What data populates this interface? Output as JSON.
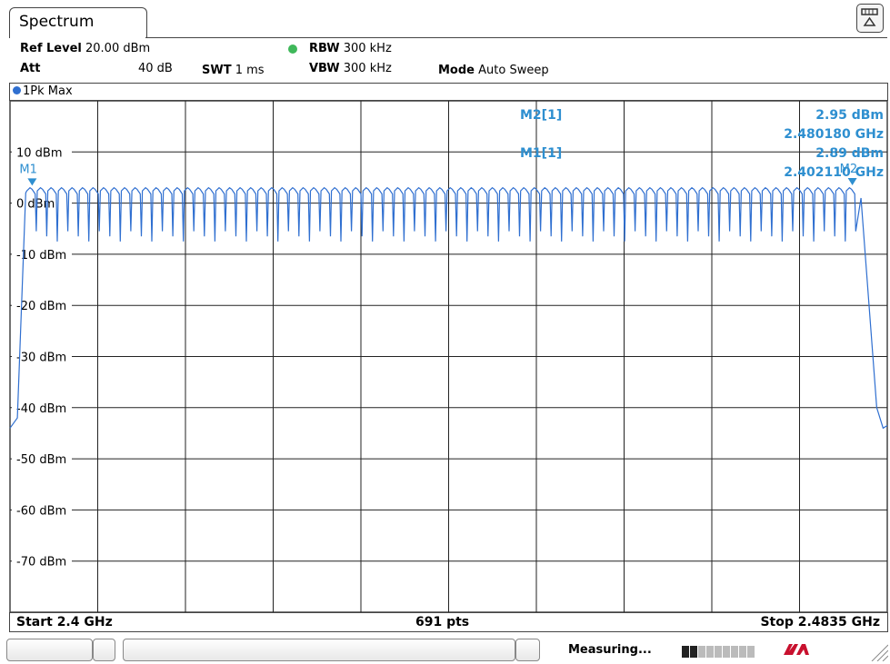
{
  "window": {
    "tab_title": "Spectrum"
  },
  "settings": {
    "ref_level_label": "Ref Level",
    "ref_level_value": "20.00 dBm",
    "att_label": "Att",
    "att_value": "40 dB",
    "swt_label": "SWT",
    "swt_value": "1 ms",
    "rbw_label": "RBW",
    "rbw_value": "300 kHz",
    "vbw_label": "VBW",
    "vbw_value": "300 kHz",
    "mode_label": "Mode",
    "mode_value": "Auto Sweep"
  },
  "trace": {
    "label": "1Pk Max",
    "color": "#2f6fd0"
  },
  "chart_data": {
    "type": "line",
    "x_start_ghz": 2.4,
    "x_stop_ghz": 2.4835,
    "ylim": [
      -80,
      20
    ],
    "grid": true,
    "ytick_labels": [
      "10 dBm",
      "0 dBm",
      "-10 dBm",
      "-20 dBm",
      "-30 dBm",
      "-40 dBm",
      "-50 dBm",
      "-60 dBm",
      "-70 dBm"
    ],
    "ytick_values": [
      10,
      0,
      -10,
      -20,
      -30,
      -40,
      -50,
      -60,
      -70
    ],
    "series": [
      {
        "channels": 79,
        "channel_start_ghz": 2.402,
        "channel_spacing_mhz": 1,
        "peak_dbm": 3.0,
        "dip_dbm": -5.5,
        "floor_dbm": -44
      }
    ],
    "markers": [
      {
        "id": "M1",
        "label": "M1[1]",
        "freq_ghz": 2.40211,
        "level_dbm": 2.89,
        "level_text": "2.89 dBm",
        "freq_text": "2.402110 GHz"
      },
      {
        "id": "M2",
        "label": "M2[1]",
        "freq_ghz": 2.48018,
        "level_dbm": 2.95,
        "level_text": "2.95 dBm",
        "freq_text": "2.480180 GHz"
      }
    ],
    "marker_color": "#2e8fd0"
  },
  "footer": {
    "start": "Start 2.4 GHz",
    "points": "691 pts",
    "stop": "Stop 2.4835 GHz"
  },
  "status": {
    "text": "Measuring..."
  }
}
